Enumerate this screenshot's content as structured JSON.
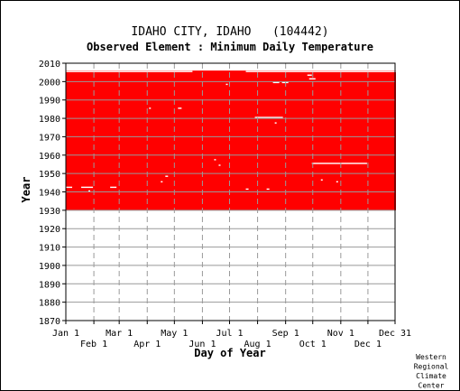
{
  "title": "IDAHO CITY, IDAHO   (104442)",
  "subtitle": "Observed Element : Minimum Daily Temperature",
  "credit": [
    "Western",
    "Regional",
    "Climate",
    "Center"
  ],
  "chart_data": {
    "type": "heatmap",
    "title": "IDAHO CITY, IDAHO   (104442)",
    "subtitle": "Observed Element : Minimum Daily Temperature",
    "xlabel": "Day of Year",
    "ylabel": "Year",
    "ylim": [
      1870,
      2010
    ],
    "y_ticks": [
      1870,
      1880,
      1890,
      1900,
      1910,
      1920,
      1930,
      1940,
      1950,
      1960,
      1970,
      1980,
      1990,
      2000,
      2010
    ],
    "x_ticks_top": [
      {
        "label": "Jan 1",
        "day": 1
      },
      {
        "label": "Mar 1",
        "day": 60
      },
      {
        "label": "May 1",
        "day": 121
      },
      {
        "label": "Jul 1",
        "day": 182
      },
      {
        "label": "Sep 1",
        "day": 244
      },
      {
        "label": "Nov 1",
        "day": 305
      },
      {
        "label": "Dec 31",
        "day": 365
      }
    ],
    "x_ticks_bottom": [
      {
        "label": "Feb 1",
        "day": 32
      },
      {
        "label": "Apr 1",
        "day": 91
      },
      {
        "label": "Jun 1",
        "day": 152
      },
      {
        "label": "Aug 1",
        "day": 213
      },
      {
        "label": "Oct 1",
        "day": 274
      },
      {
        "label": "Dec 1",
        "day": 335
      }
    ],
    "grid": true,
    "data_color": "#ff0000",
    "data_region": {
      "start_year": 1930,
      "end_year": 2005,
      "start_day": 1,
      "end_day": 365
    },
    "missing": [
      {
        "year": 2005,
        "day_start": 1,
        "day_end": 140
      },
      {
        "year": 2005,
        "day_start": 200,
        "day_end": 365
      },
      {
        "year": 2003,
        "day_start": 268,
        "day_end": 272
      },
      {
        "year": 2001,
        "day_start": 270,
        "day_end": 276
      },
      {
        "year": 1999,
        "day_start": 230,
        "day_end": 236
      },
      {
        "year": 1999,
        "day_start": 240,
        "day_end": 246
      },
      {
        "year": 1998,
        "day_start": 178,
        "day_end": 179
      },
      {
        "year": 1985,
        "day_start": 93,
        "day_end": 94
      },
      {
        "year": 1985,
        "day_start": 125,
        "day_end": 128
      },
      {
        "year": 1980,
        "day_start": 210,
        "day_end": 240
      },
      {
        "year": 1977,
        "day_start": 232,
        "day_end": 233
      },
      {
        "year": 1957,
        "day_start": 165,
        "day_end": 166
      },
      {
        "year": 1955,
        "day_start": 273,
        "day_end": 333
      },
      {
        "year": 1954,
        "day_start": 170,
        "day_end": 171
      },
      {
        "year": 1948,
        "day_start": 111,
        "day_end": 113
      },
      {
        "year": 1946,
        "day_start": 283,
        "day_end": 284
      },
      {
        "year": 1945,
        "day_start": 106,
        "day_end": 107
      },
      {
        "year": 1945,
        "day_start": 300,
        "day_end": 301
      },
      {
        "year": 1942,
        "day_start": 1,
        "day_end": 7
      },
      {
        "year": 1942,
        "day_start": 18,
        "day_end": 30
      },
      {
        "year": 1942,
        "day_start": 50,
        "day_end": 56
      },
      {
        "year": 1941,
        "day_start": 200,
        "day_end": 202
      },
      {
        "year": 1941,
        "day_start": 223,
        "day_end": 225
      },
      {
        "year": 1940,
        "day_start": 26,
        "day_end": 27
      }
    ]
  }
}
